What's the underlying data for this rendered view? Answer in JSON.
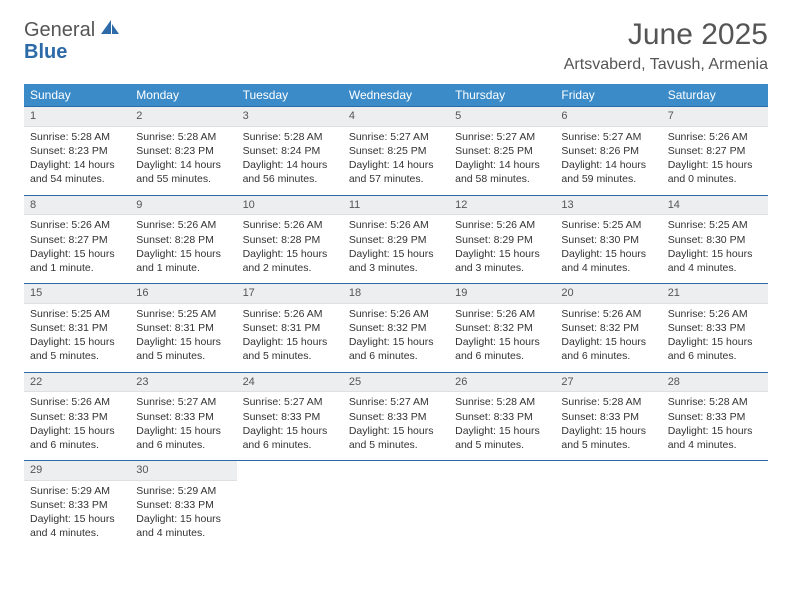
{
  "logo": {
    "line1": "General",
    "line2": "Blue"
  },
  "title": {
    "month": "June 2025",
    "location": "Artsvaberd, Tavush, Armenia"
  },
  "colors": {
    "header_bg": "#3b8bc9",
    "daynum_bg": "#eceeef",
    "rule": "#2c6aa8",
    "logo_blue": "#2c6aa8"
  },
  "weekdays": [
    "Sunday",
    "Monday",
    "Tuesday",
    "Wednesday",
    "Thursday",
    "Friday",
    "Saturday"
  ],
  "weeks": [
    [
      {
        "n": "1",
        "sr": "5:28 AM",
        "ss": "8:23 PM",
        "dl": "14 hours and 54 minutes."
      },
      {
        "n": "2",
        "sr": "5:28 AM",
        "ss": "8:23 PM",
        "dl": "14 hours and 55 minutes."
      },
      {
        "n": "3",
        "sr": "5:28 AM",
        "ss": "8:24 PM",
        "dl": "14 hours and 56 minutes."
      },
      {
        "n": "4",
        "sr": "5:27 AM",
        "ss": "8:25 PM",
        "dl": "14 hours and 57 minutes."
      },
      {
        "n": "5",
        "sr": "5:27 AM",
        "ss": "8:25 PM",
        "dl": "14 hours and 58 minutes."
      },
      {
        "n": "6",
        "sr": "5:27 AM",
        "ss": "8:26 PM",
        "dl": "14 hours and 59 minutes."
      },
      {
        "n": "7",
        "sr": "5:26 AM",
        "ss": "8:27 PM",
        "dl": "15 hours and 0 minutes."
      }
    ],
    [
      {
        "n": "8",
        "sr": "5:26 AM",
        "ss": "8:27 PM",
        "dl": "15 hours and 1 minute."
      },
      {
        "n": "9",
        "sr": "5:26 AM",
        "ss": "8:28 PM",
        "dl": "15 hours and 1 minute."
      },
      {
        "n": "10",
        "sr": "5:26 AM",
        "ss": "8:28 PM",
        "dl": "15 hours and 2 minutes."
      },
      {
        "n": "11",
        "sr": "5:26 AM",
        "ss": "8:29 PM",
        "dl": "15 hours and 3 minutes."
      },
      {
        "n": "12",
        "sr": "5:26 AM",
        "ss": "8:29 PM",
        "dl": "15 hours and 3 minutes."
      },
      {
        "n": "13",
        "sr": "5:25 AM",
        "ss": "8:30 PM",
        "dl": "15 hours and 4 minutes."
      },
      {
        "n": "14",
        "sr": "5:25 AM",
        "ss": "8:30 PM",
        "dl": "15 hours and 4 minutes."
      }
    ],
    [
      {
        "n": "15",
        "sr": "5:25 AM",
        "ss": "8:31 PM",
        "dl": "15 hours and 5 minutes."
      },
      {
        "n": "16",
        "sr": "5:25 AM",
        "ss": "8:31 PM",
        "dl": "15 hours and 5 minutes."
      },
      {
        "n": "17",
        "sr": "5:26 AM",
        "ss": "8:31 PM",
        "dl": "15 hours and 5 minutes."
      },
      {
        "n": "18",
        "sr": "5:26 AM",
        "ss": "8:32 PM",
        "dl": "15 hours and 6 minutes."
      },
      {
        "n": "19",
        "sr": "5:26 AM",
        "ss": "8:32 PM",
        "dl": "15 hours and 6 minutes."
      },
      {
        "n": "20",
        "sr": "5:26 AM",
        "ss": "8:32 PM",
        "dl": "15 hours and 6 minutes."
      },
      {
        "n": "21",
        "sr": "5:26 AM",
        "ss": "8:33 PM",
        "dl": "15 hours and 6 minutes."
      }
    ],
    [
      {
        "n": "22",
        "sr": "5:26 AM",
        "ss": "8:33 PM",
        "dl": "15 hours and 6 minutes."
      },
      {
        "n": "23",
        "sr": "5:27 AM",
        "ss": "8:33 PM",
        "dl": "15 hours and 6 minutes."
      },
      {
        "n": "24",
        "sr": "5:27 AM",
        "ss": "8:33 PM",
        "dl": "15 hours and 6 minutes."
      },
      {
        "n": "25",
        "sr": "5:27 AM",
        "ss": "8:33 PM",
        "dl": "15 hours and 5 minutes."
      },
      {
        "n": "26",
        "sr": "5:28 AM",
        "ss": "8:33 PM",
        "dl": "15 hours and 5 minutes."
      },
      {
        "n": "27",
        "sr": "5:28 AM",
        "ss": "8:33 PM",
        "dl": "15 hours and 5 minutes."
      },
      {
        "n": "28",
        "sr": "5:28 AM",
        "ss": "8:33 PM",
        "dl": "15 hours and 4 minutes."
      }
    ],
    [
      {
        "n": "29",
        "sr": "5:29 AM",
        "ss": "8:33 PM",
        "dl": "15 hours and 4 minutes."
      },
      {
        "n": "30",
        "sr": "5:29 AM",
        "ss": "8:33 PM",
        "dl": "15 hours and 4 minutes."
      },
      null,
      null,
      null,
      null,
      null
    ]
  ],
  "labels": {
    "sunrise": "Sunrise:",
    "sunset": "Sunset:",
    "daylight": "Daylight:"
  }
}
